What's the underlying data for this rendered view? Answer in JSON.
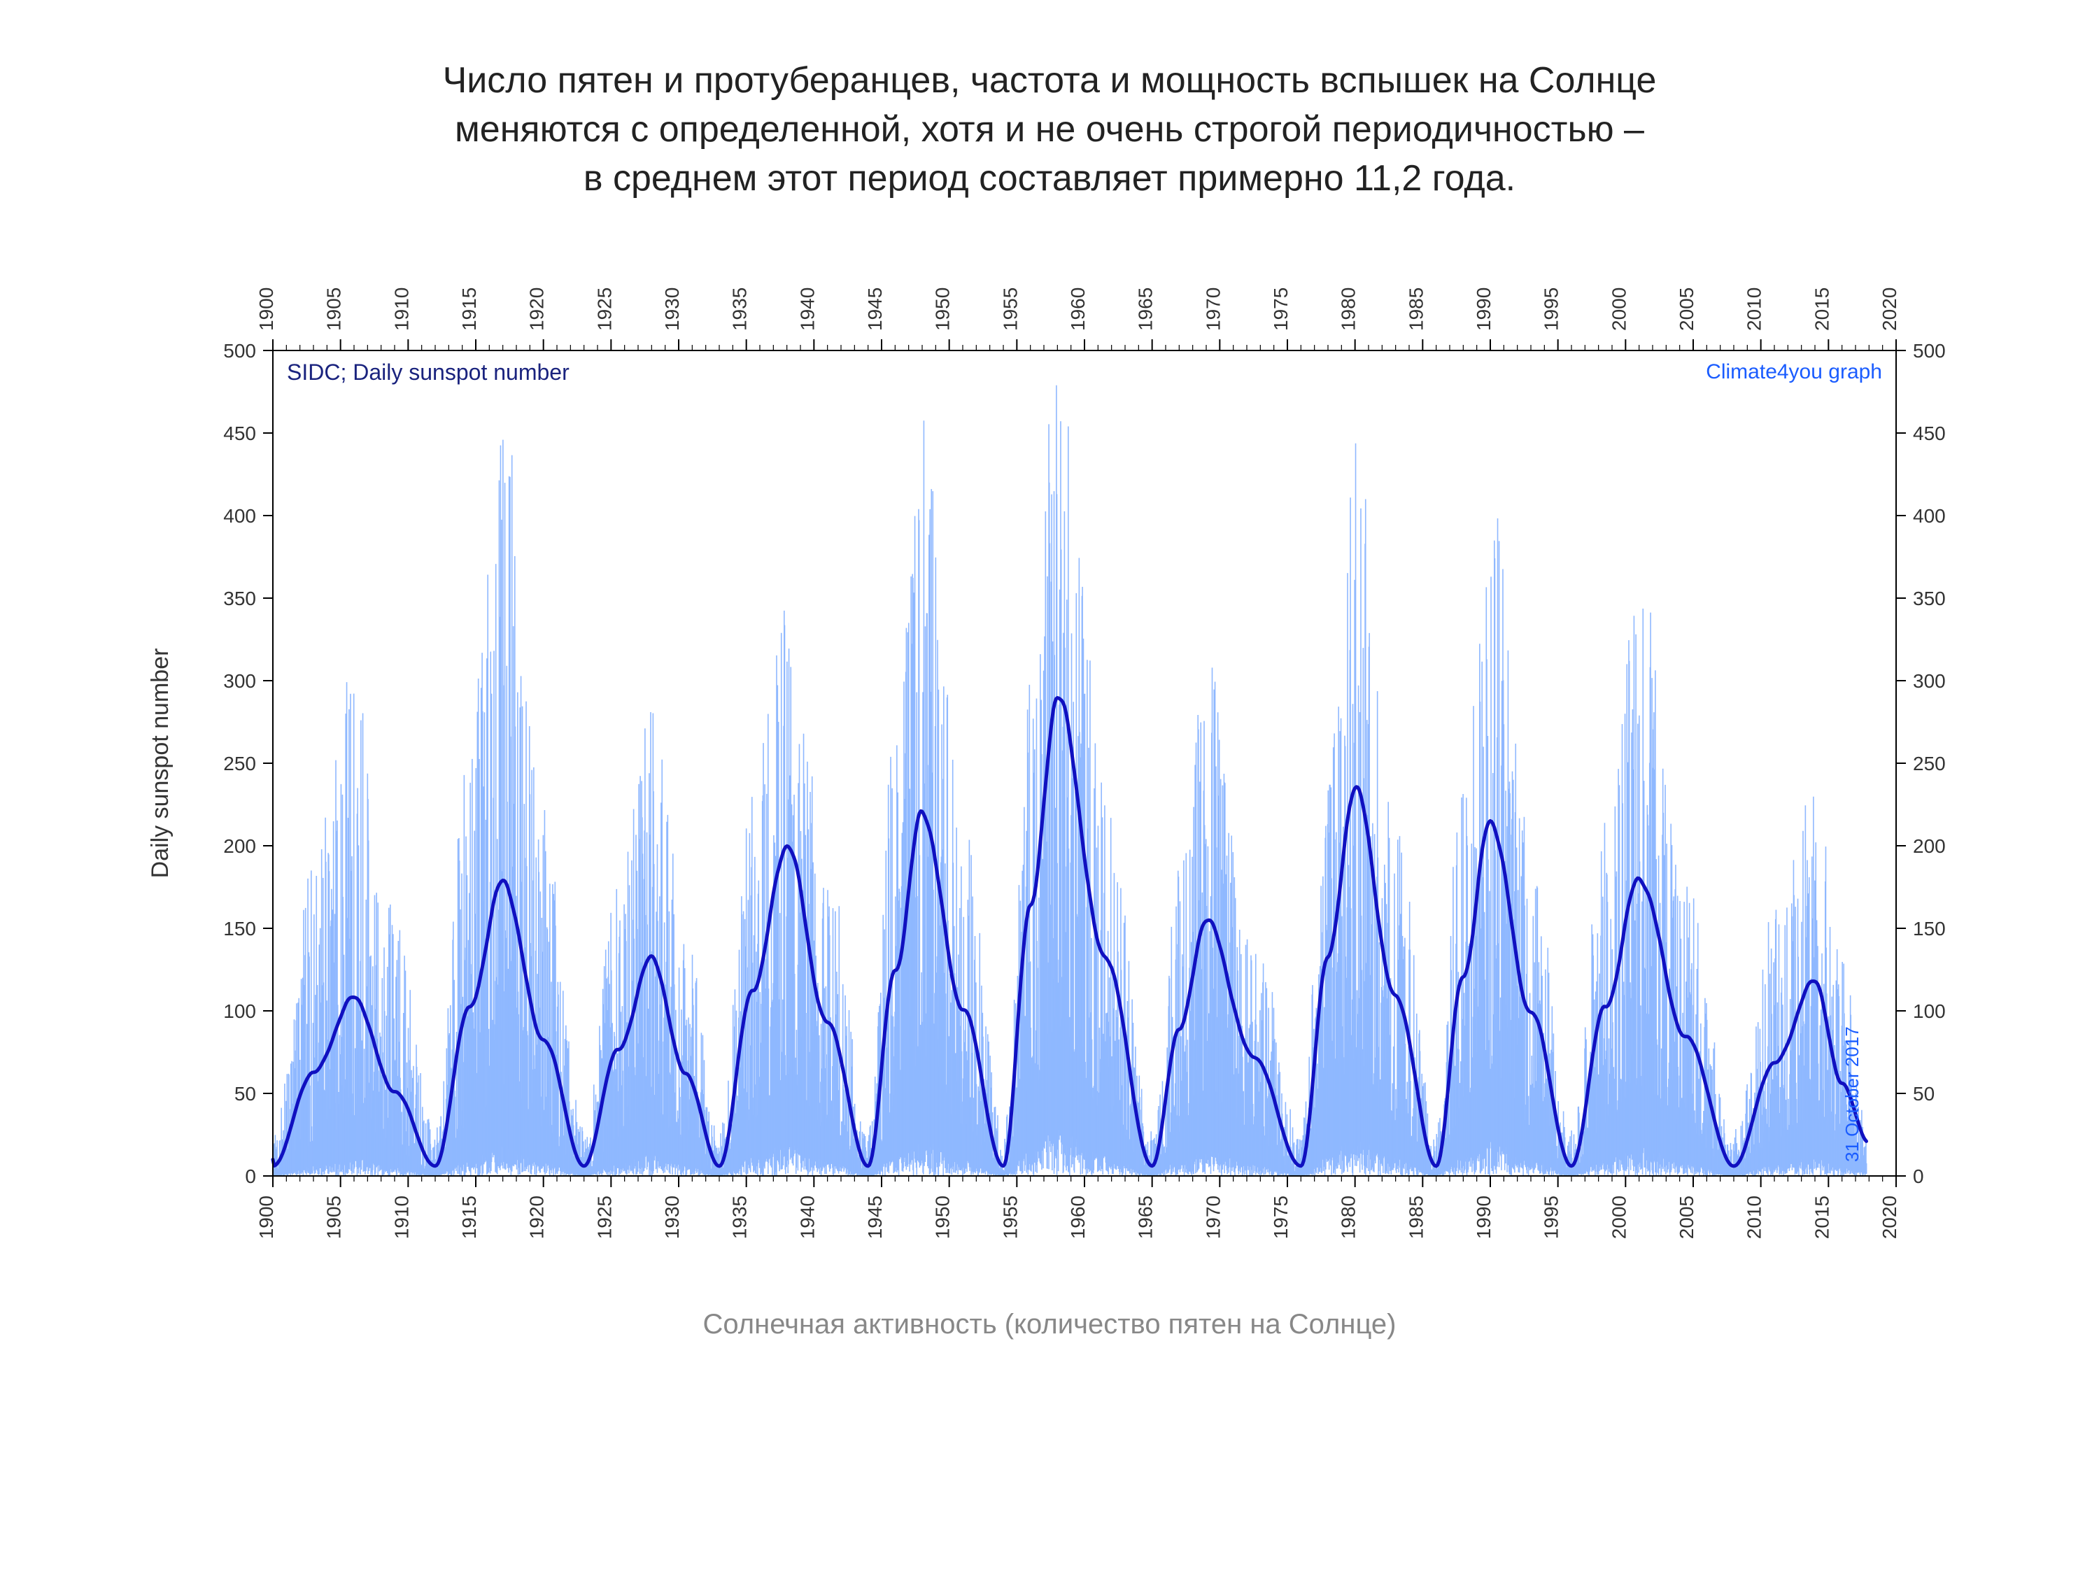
{
  "title_lines": [
    "Число пятен и протуберанцев, частота и мощность вспышек на Солнце",
    "меняются с определенной, хотя и не очень строгой периодичностью –",
    "в среднем этот период составляет примерно 11,2 года."
  ],
  "caption": "Солнечная активность (количество пятен на Солнце)",
  "chart": {
    "type": "line_with_range",
    "background_color": "#ffffff",
    "plot_border_color": "#000000",
    "daily_series_color": "#8fb8ff",
    "smoothed_series_color": "#1010c0",
    "smoothed_line_width": 5,
    "y_axis_label": "Daily sunspot number",
    "inside_top_left_label": "SIDC; Daily sunspot number",
    "inside_top_right_label": "Climate4you graph",
    "vertical_date_label": "31 October 2017",
    "x": {
      "min": 1900,
      "max": 2020,
      "tick_step": 5
    },
    "y": {
      "min": 0,
      "max": 500,
      "tick_step": 50
    },
    "label_fontsize": 34,
    "tick_fontsize": 28,
    "cycles": [
      {
        "start": 1900,
        "peak": 1906,
        "end": 1912,
        "peak_smoothed": 108,
        "peak_daily_max": 305
      },
      {
        "start": 1912,
        "peak": 1917,
        "end": 1923,
        "peak_smoothed": 178,
        "peak_daily_max": 448
      },
      {
        "start": 1923,
        "peak": 1928,
        "end": 1933,
        "peak_smoothed": 132,
        "peak_daily_max": 290
      },
      {
        "start": 1933,
        "peak": 1938,
        "end": 1944,
        "peak_smoothed": 200,
        "peak_daily_max": 380
      },
      {
        "start": 1944,
        "peak": 1948,
        "end": 1954,
        "peak_smoothed": 220,
        "peak_daily_max": 460
      },
      {
        "start": 1954,
        "peak": 1958,
        "end": 1965,
        "peak_smoothed": 290,
        "peak_daily_max": 505
      },
      {
        "start": 1965,
        "peak": 1969,
        "end": 1976,
        "peak_smoothed": 155,
        "peak_daily_max": 305
      },
      {
        "start": 1976,
        "peak": 1980,
        "end": 1986,
        "peak_smoothed": 235,
        "peak_daily_max": 430
      },
      {
        "start": 1986,
        "peak": 1990,
        "end": 1996,
        "peak_smoothed": 215,
        "peak_daily_max": 415
      },
      {
        "start": 1996,
        "peak": 2001,
        "end": 2008,
        "peak_smoothed": 180,
        "peak_daily_max": 355
      },
      {
        "start": 2008,
        "peak": 2014,
        "end": 2018,
        "peak_smoothed": 118,
        "peak_daily_max": 255
      }
    ],
    "trough_smoothed": 6,
    "trough_daily_max": 40
  }
}
